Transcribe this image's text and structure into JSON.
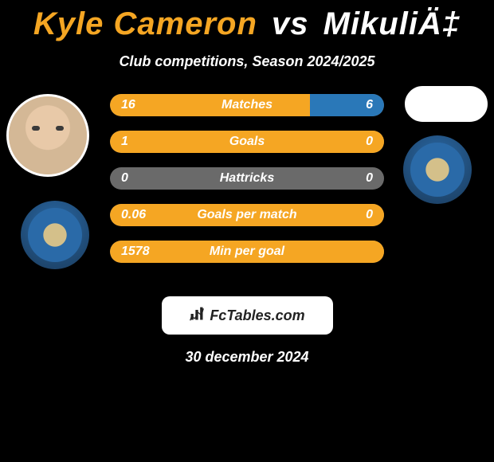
{
  "title": {
    "player1": "Kyle Cameron",
    "vs": "vs",
    "player2": "MikuliÄ‡"
  },
  "subtitle": "Club competitions, Season 2024/2025",
  "colors": {
    "player1_accent": "#f5a623",
    "player2_accent": "#2a78b8",
    "bar_bg": "#6a6a6a",
    "text": "#ffffff",
    "background": "#000000"
  },
  "stats": [
    {
      "label": "Matches",
      "p1_value": "16",
      "p2_value": "6",
      "p1_pct": 73,
      "p2_pct": 27
    },
    {
      "label": "Goals",
      "p1_value": "1",
      "p2_value": "0",
      "p1_pct": 100,
      "p2_pct": 0
    },
    {
      "label": "Hattricks",
      "p1_value": "0",
      "p2_value": "0",
      "p1_pct": 0,
      "p2_pct": 0
    },
    {
      "label": "Goals per match",
      "p1_value": "0.06",
      "p2_value": "0",
      "p1_pct": 100,
      "p2_pct": 0
    },
    {
      "label": "Min per goal",
      "p1_value": "1578",
      "p2_value": "",
      "p1_pct": 100,
      "p2_pct": 0
    }
  ],
  "footer": {
    "brand": "FcTables.com",
    "icon_name": "bar-chart-icon"
  },
  "date": "30 december 2024"
}
